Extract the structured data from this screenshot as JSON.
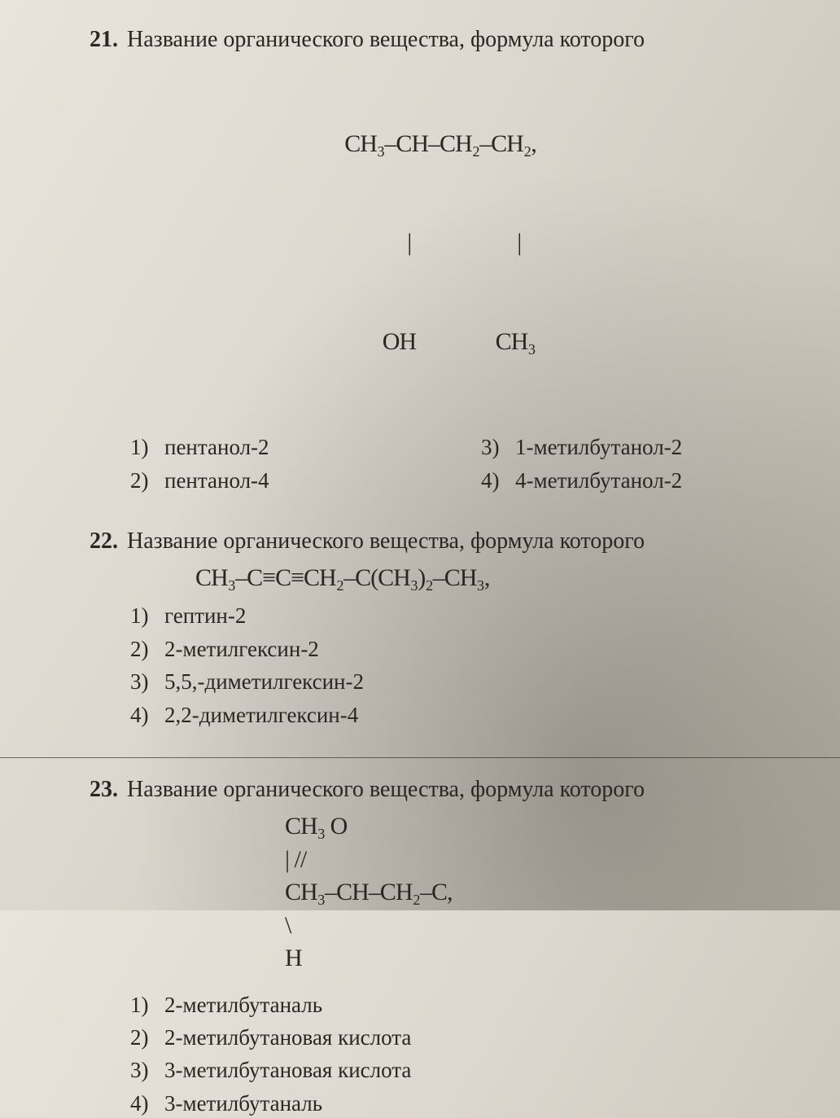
{
  "q21": {
    "number": "21.",
    "prompt": "Название органического вещества, формула которого",
    "formula_line1": "CH₃–CH–CH₂–CH₂,",
    "formula_line2": "         |                    |",
    "formula_line3": "       OH               CH₃",
    "answers": [
      {
        "n": "1)",
        "text": "пентанол-2"
      },
      {
        "n": "2)",
        "text": "пентанол-4"
      },
      {
        "n": "3)",
        "text": "1-метилбутанол-2"
      },
      {
        "n": "4)",
        "text": "4-метилбутанол-2"
      }
    ]
  },
  "q22": {
    "number": "22.",
    "prompt": "Название органического вещества, формула которого",
    "formula": "CH₃–C≡C≡CH₂–C(CH₃)₂–CH₃,",
    "answers": [
      {
        "n": "1)",
        "text": "гептин-2"
      },
      {
        "n": "2)",
        "text": "2-метилгексин-2"
      },
      {
        "n": "3)",
        "text": "5,5,-диметилгексин-2"
      },
      {
        "n": "4)",
        "text": "2,2-диметилгексин-4"
      }
    ]
  },
  "q23": {
    "number": "23.",
    "prompt": "Название органического вещества, формула которого",
    "formula_line1": "CH₃                O",
    "formula_line2": "   |                  //",
    "formula_line3": "CH₃–CH–CH₂–C,",
    "formula_line4": "                       \\",
    "formula_line5": "                        H",
    "answers": [
      {
        "n": "1)",
        "text": "2-метилбутаналь"
      },
      {
        "n": "2)",
        "text": "2-метилбутановая кислота"
      },
      {
        "n": "3)",
        "text": "3-метилбутановая кислота"
      },
      {
        "n": "4)",
        "text": "3-метилбутаналь"
      }
    ]
  }
}
